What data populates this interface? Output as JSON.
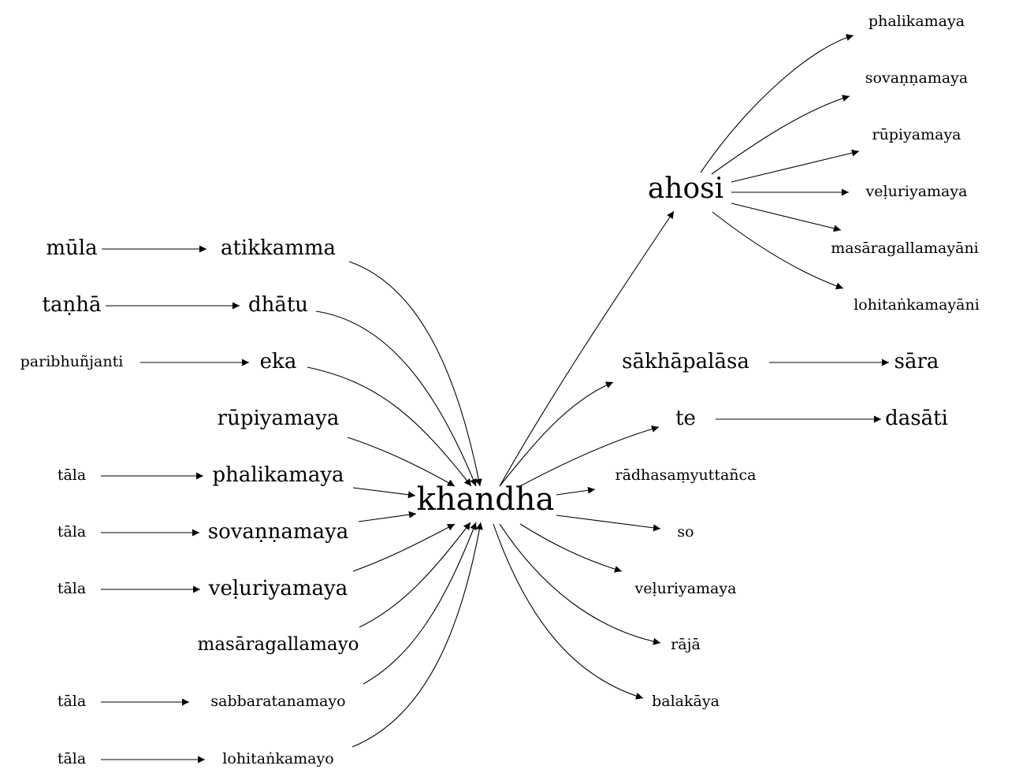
{
  "nodes": [
    {
      "id": "khandha",
      "label": "khandha",
      "weight": 3
    },
    {
      "id": "ahosi",
      "label": "ahosi",
      "weight": 2.5
    },
    {
      "id": "atikkamma",
      "label": "atikkamma",
      "weight": 2
    },
    {
      "id": "dhatu",
      "label": "dhātu",
      "weight": 2
    },
    {
      "id": "eka",
      "label": "eka",
      "weight": 2
    },
    {
      "id": "rupiyamaya_l",
      "label": "rūpiyamaya",
      "weight": 2
    },
    {
      "id": "phalikamaya_l",
      "label": "phalikamaya",
      "weight": 2
    },
    {
      "id": "sovannamaya_l",
      "label": "sovaṇṇamaya",
      "weight": 2
    },
    {
      "id": "veluriyamaya_l",
      "label": "veḷuriyamaya",
      "weight": 2
    },
    {
      "id": "masaragallamayo",
      "label": "masāragallamayo",
      "weight": 1.5
    },
    {
      "id": "sabbaratanamayo",
      "label": "sabbaratanamayo",
      "weight": 1
    },
    {
      "id": "lohitankamayo",
      "label": "lohitaṅkamayo",
      "weight": 1
    },
    {
      "id": "mula",
      "label": "mūla",
      "weight": 2
    },
    {
      "id": "tanha",
      "label": "taṇhā",
      "weight": 2
    },
    {
      "id": "paribhunjanti",
      "label": "paribhuñjanti",
      "weight": 1
    },
    {
      "id": "tala1",
      "label": "tāla",
      "weight": 1
    },
    {
      "id": "tala2",
      "label": "tāla",
      "weight": 1
    },
    {
      "id": "tala3",
      "label": "tāla",
      "weight": 1
    },
    {
      "id": "tala4",
      "label": "tāla",
      "weight": 1
    },
    {
      "id": "tala5",
      "label": "tāla",
      "weight": 1
    },
    {
      "id": "phalikamaya_r",
      "label": "phalikamaya",
      "weight": 1
    },
    {
      "id": "sovannamaya_r",
      "label": "sovaṇṇamaya",
      "weight": 1
    },
    {
      "id": "rupiyamaya_r",
      "label": "rūpiyamaya",
      "weight": 1
    },
    {
      "id": "veluriyamaya_r1",
      "label": "veḷuriyamaya",
      "weight": 1
    },
    {
      "id": "masaragallamayani",
      "label": "masāragallamayāni",
      "weight": 1
    },
    {
      "id": "lohitankamayani",
      "label": "lohitaṅkamayāni",
      "weight": 1
    },
    {
      "id": "sakhapalasa",
      "label": "sākhāpalāsa",
      "weight": 2
    },
    {
      "id": "sara",
      "label": "sāra",
      "weight": 2
    },
    {
      "id": "te",
      "label": "te",
      "weight": 2
    },
    {
      "id": "dasati",
      "label": "dasāti",
      "weight": 2
    },
    {
      "id": "radhasamyuttanca",
      "label": "rādhasaṃyuttañca",
      "weight": 1
    },
    {
      "id": "so",
      "label": "so",
      "weight": 1
    },
    {
      "id": "veluriyamaya_r2",
      "label": "veḷuriyamaya",
      "weight": 1
    },
    {
      "id": "raja",
      "label": "rājā",
      "weight": 1
    },
    {
      "id": "balakaya",
      "label": "balakāya",
      "weight": 1
    }
  ],
  "edges": [
    {
      "from": "mula",
      "to": "atikkamma"
    },
    {
      "from": "tanha",
      "to": "dhatu"
    },
    {
      "from": "paribhunjanti",
      "to": "eka"
    },
    {
      "from": "tala1",
      "to": "phalikamaya_l"
    },
    {
      "from": "tala2",
      "to": "sovannamaya_l"
    },
    {
      "from": "tala3",
      "to": "veluriyamaya_l"
    },
    {
      "from": "tala4",
      "to": "sabbaratanamayo"
    },
    {
      "from": "tala5",
      "to": "lohitankamayo"
    },
    {
      "from": "atikkamma",
      "to": "khandha"
    },
    {
      "from": "dhatu",
      "to": "khandha"
    },
    {
      "from": "eka",
      "to": "khandha"
    },
    {
      "from": "rupiyamaya_l",
      "to": "khandha"
    },
    {
      "from": "phalikamaya_l",
      "to": "khandha"
    },
    {
      "from": "sovannamaya_l",
      "to": "khandha"
    },
    {
      "from": "veluriyamaya_l",
      "to": "khandha"
    },
    {
      "from": "masaragallamayo",
      "to": "khandha"
    },
    {
      "from": "sabbaratanamayo",
      "to": "khandha"
    },
    {
      "from": "lohitankamayo",
      "to": "khandha"
    },
    {
      "from": "khandha",
      "to": "ahosi"
    },
    {
      "from": "khandha",
      "to": "sakhapalasa"
    },
    {
      "from": "khandha",
      "to": "te"
    },
    {
      "from": "khandha",
      "to": "radhasamyuttanca"
    },
    {
      "from": "khandha",
      "to": "so"
    },
    {
      "from": "khandha",
      "to": "veluriyamaya_r2"
    },
    {
      "from": "khandha",
      "to": "raja"
    },
    {
      "from": "khandha",
      "to": "balakaya"
    },
    {
      "from": "ahosi",
      "to": "phalikamaya_r"
    },
    {
      "from": "ahosi",
      "to": "sovannamaya_r"
    },
    {
      "from": "ahosi",
      "to": "rupiyamaya_r"
    },
    {
      "from": "ahosi",
      "to": "veluriyamaya_r1"
    },
    {
      "from": "ahosi",
      "to": "masaragallamayani"
    },
    {
      "from": "ahosi",
      "to": "lohitankamayani"
    },
    {
      "from": "sakhapalasa",
      "to": "sara"
    },
    {
      "from": "te",
      "to": "dasati"
    }
  ]
}
